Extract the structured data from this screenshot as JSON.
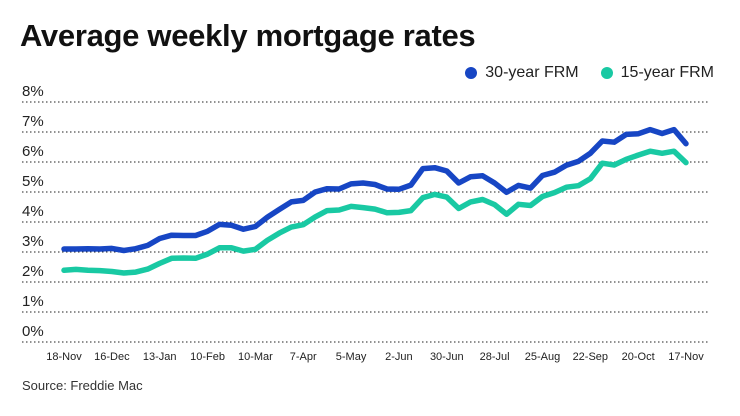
{
  "colors": {
    "thirty": "#1746c4",
    "fifteen": "#19c9a3"
  },
  "footer": {
    "source": "Source: Freddie Mac"
  },
  "chart_data": {
    "type": "line",
    "title": "Average weekly mortgage rates",
    "xlabel": "",
    "ylabel": "",
    "ylim": [
      0,
      8
    ],
    "yticks": [
      "0%",
      "1%",
      "2%",
      "3%",
      "4%",
      "5%",
      "6%",
      "7%",
      "8%"
    ],
    "grid": true,
    "legend_position": "top-right",
    "x_tick_labels": [
      "18-Nov",
      "16-Dec",
      "13-Jan",
      "10-Feb",
      "10-Mar",
      "7-Apr",
      "5-May",
      "2-Jun",
      "30-Jun",
      "28-Jul",
      "25-Aug",
      "22-Sep",
      "20-Oct",
      "17-Nov"
    ],
    "x_tick_weeks": [
      0,
      4,
      8,
      12,
      16,
      20,
      24,
      28,
      32,
      36,
      40,
      44,
      48,
      52
    ],
    "series": [
      {
        "name": "30-year FRM",
        "values": [
          3.1,
          3.1,
          3.11,
          3.1,
          3.12,
          3.05,
          3.11,
          3.22,
          3.45,
          3.56,
          3.55,
          3.55,
          3.69,
          3.92,
          3.89,
          3.76,
          3.85,
          4.16,
          4.42,
          4.67,
          4.72,
          5.0,
          5.11,
          5.1,
          5.27,
          5.3,
          5.25,
          5.1,
          5.09,
          5.23,
          5.78,
          5.81,
          5.7,
          5.3,
          5.51,
          5.54,
          5.3,
          4.99,
          5.22,
          5.13,
          5.55,
          5.66,
          5.89,
          6.02,
          6.29,
          6.7,
          6.66,
          6.92,
          6.94,
          7.08,
          6.95,
          7.08,
          6.61
        ]
      },
      {
        "name": "15-year FRM",
        "values": [
          2.39,
          2.42,
          2.39,
          2.38,
          2.35,
          2.3,
          2.33,
          2.43,
          2.62,
          2.79,
          2.8,
          2.79,
          2.93,
          3.14,
          3.14,
          3.03,
          3.09,
          3.39,
          3.63,
          3.83,
          3.91,
          4.17,
          4.38,
          4.4,
          4.52,
          4.48,
          4.43,
          4.31,
          4.32,
          4.38,
          4.81,
          4.92,
          4.83,
          4.45,
          4.67,
          4.75,
          4.58,
          4.26,
          4.59,
          4.55,
          4.85,
          4.98,
          5.16,
          5.21,
          5.44,
          5.96,
          5.9,
          6.09,
          6.23,
          6.36,
          6.29,
          6.36,
          5.98
        ]
      }
    ]
  }
}
